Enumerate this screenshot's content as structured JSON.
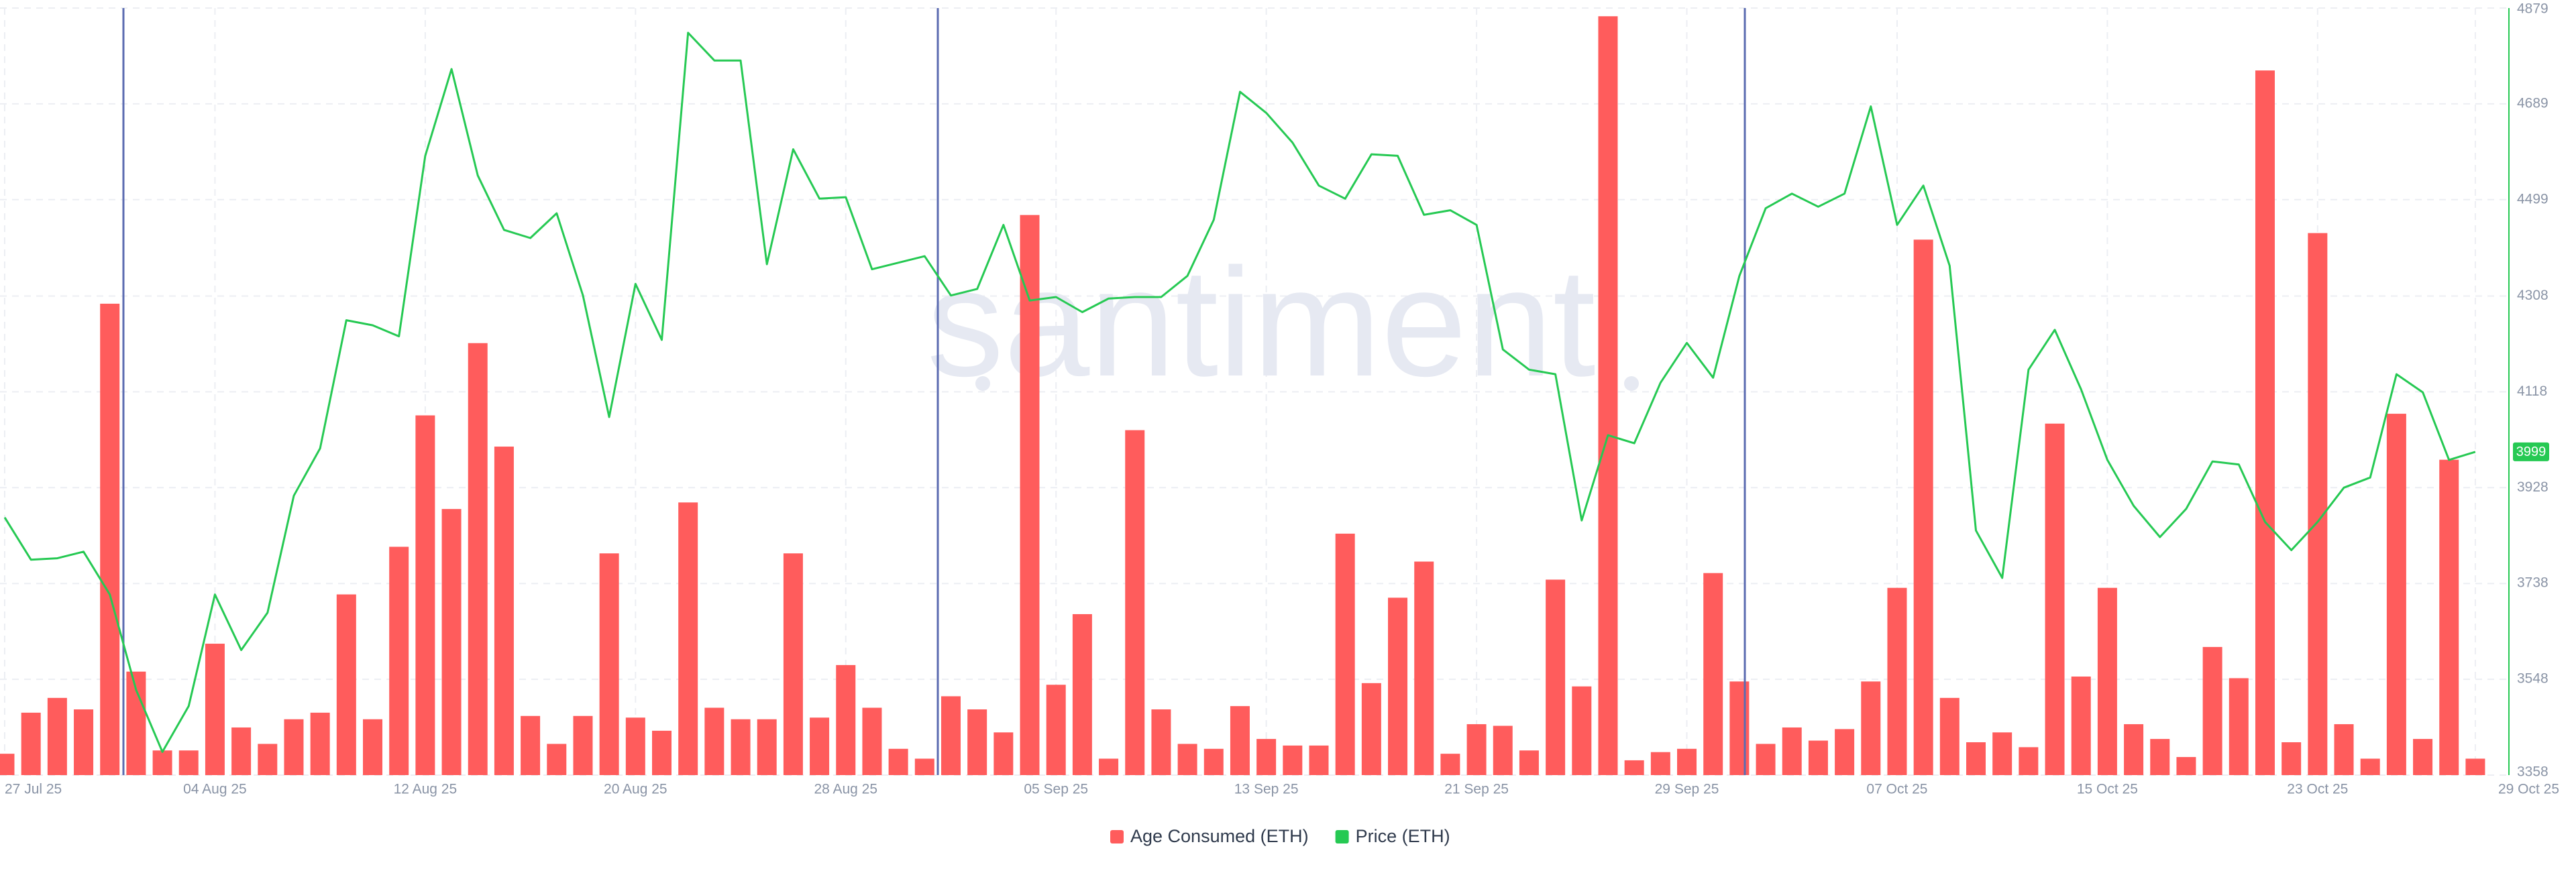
{
  "chart_data": {
    "type": "bar-line",
    "watermark": "santiment",
    "categories": [
      "27 Jul 25",
      null,
      null,
      null,
      null,
      null,
      null,
      null,
      "04 Aug 25",
      null,
      null,
      null,
      null,
      null,
      null,
      null,
      "12 Aug 25",
      null,
      null,
      null,
      null,
      null,
      null,
      null,
      "20 Aug 25",
      null,
      null,
      null,
      null,
      null,
      null,
      null,
      "28 Aug 25",
      null,
      null,
      null,
      null,
      null,
      null,
      null,
      "05 Sep 25",
      null,
      null,
      null,
      null,
      null,
      null,
      null,
      "13 Sep 25",
      null,
      null,
      null,
      null,
      null,
      null,
      null,
      "21 Sep 25",
      null,
      null,
      null,
      null,
      null,
      null,
      null,
      "29 Sep 25",
      null,
      null,
      null,
      null,
      null,
      null,
      null,
      "07 Oct 25",
      null,
      null,
      null,
      null,
      null,
      null,
      null,
      "15 Oct 25",
      null,
      null,
      null,
      null,
      null,
      null,
      null,
      "23 Oct 25",
      null,
      null,
      null,
      null,
      null,
      "29 Oct 25"
    ],
    "series": [
      {
        "name": "Age Consumed (ETH)",
        "type": "bar",
        "color": "#ff5c5c",
        "values": [
          13,
          38,
          47,
          40,
          287,
          63,
          15,
          15,
          80,
          29,
          19,
          34,
          38,
          110,
          34,
          139,
          219,
          162,
          263,
          200,
          36,
          19,
          36,
          135,
          35,
          27,
          166,
          41,
          34,
          34,
          135,
          35,
          67,
          41,
          16,
          10,
          48,
          40,
          26,
          341,
          55,
          98,
          10,
          210,
          40,
          19,
          16,
          42,
          22,
          18,
          18,
          147,
          56,
          108,
          130,
          13,
          31,
          30,
          15,
          119,
          54,
          462,
          9,
          14,
          16,
          123,
          57,
          19,
          29,
          21,
          28,
          57,
          114,
          326,
          47,
          20,
          26,
          17,
          214,
          60,
          114,
          31,
          22,
          11,
          78,
          59,
          429,
          20,
          330,
          31,
          10,
          220,
          22,
          192,
          10
        ]
      },
      {
        "name": "Price (ETH)",
        "type": "line",
        "color": "#26c953",
        "axis": "y2",
        "values": [
          3869,
          3785,
          3788,
          3801,
          3716,
          3527,
          3404,
          3495,
          3716,
          3606,
          3680,
          3912,
          4006,
          4260,
          4250,
          4228,
          4586,
          4758,
          4547,
          4439,
          4423,
          4472,
          4309,
          4068,
          4332,
          4221,
          4830,
          4775,
          4775,
          4371,
          4599,
          4501,
          4504,
          4361,
          4374,
          4387,
          4309,
          4322,
          4449,
          4299,
          4306,
          4276,
          4303,
          4306,
          4306,
          4348,
          4459,
          4713,
          4671,
          4612,
          4527,
          4501,
          4589,
          4586,
          4469,
          4478,
          4449,
          4202,
          4162,
          4153,
          3863,
          4032,
          4016,
          4136,
          4215,
          4146,
          4348,
          4482,
          4511,
          4485,
          4511,
          4684,
          4449,
          4527,
          4368,
          3843,
          3749,
          4162,
          4241,
          4123,
          3983,
          3892,
          3830,
          3886,
          3980,
          3974,
          3860,
          3804,
          3860,
          3928,
          3948,
          4153,
          4117,
          3983,
          3999
        ]
      }
    ],
    "ylim": [
      0,
      467
    ],
    "y2lim": [
      3358,
      4879
    ],
    "y2ticks": [
      3358,
      3548,
      3738,
      3928,
      4118,
      4308,
      4499,
      4689,
      4879
    ],
    "grid": true
  }
}
